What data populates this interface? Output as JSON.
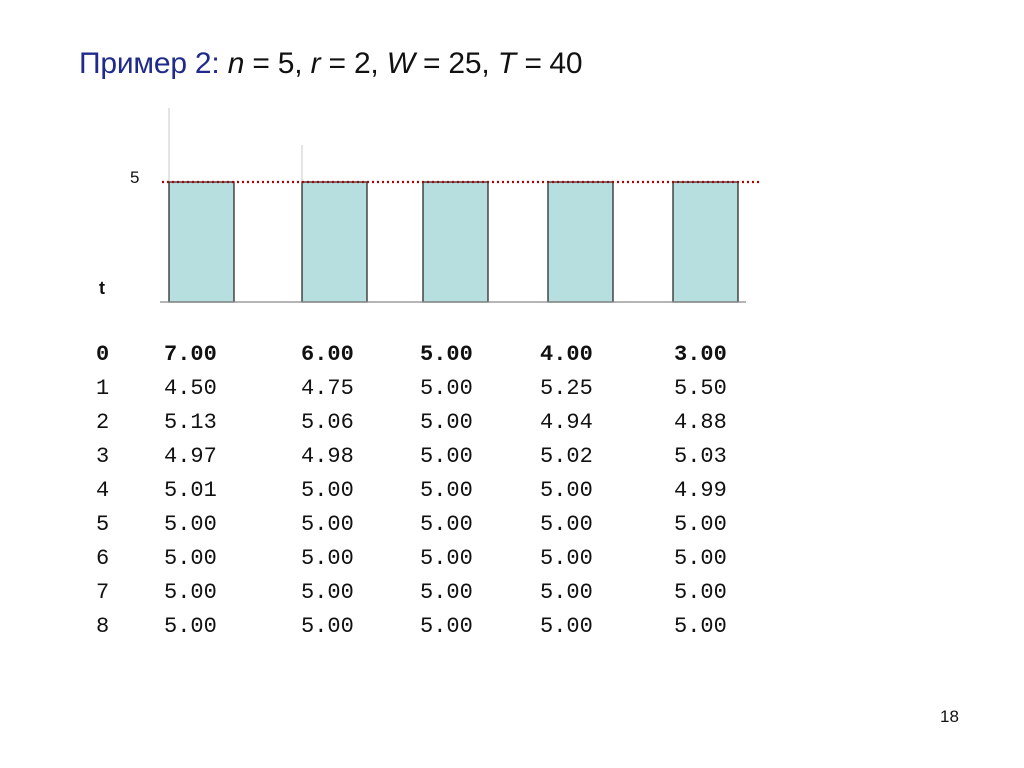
{
  "title": {
    "lead": "Пример 2",
    "colon": ":",
    "n_var": "n",
    "n_val": " = 5, ",
    "r_var": "r",
    "r_val": " = 2, ",
    "w_var": "W",
    "w_val": " = 25, ",
    "t_var": "T",
    "t_eq": " = ",
    "t_num": "40"
  },
  "chart_data": {
    "type": "bar",
    "categories": [
      "",
      "",
      "",
      "",
      ""
    ],
    "values": [
      5,
      5,
      5,
      5,
      5
    ],
    "reference_line": {
      "y": 5,
      "style": "dotted",
      "color": "#b00000"
    },
    "y_tick_label": "5",
    "x_label": "t",
    "bar_color": "#b8dfe0"
  },
  "table": {
    "rows": [
      {
        "t": "0",
        "v": [
          "7.00",
          "6.00",
          "5.00",
          "4.00",
          "3.00"
        ],
        "bold": true
      },
      {
        "t": "1",
        "v": [
          "4.50",
          "4.75",
          "5.00",
          "5.25",
          "5.50"
        ]
      },
      {
        "t": "2",
        "v": [
          "5.13",
          "5.06",
          "5.00",
          "4.94",
          "4.88"
        ]
      },
      {
        "t": "3",
        "v": [
          "4.97",
          "4.98",
          "5.00",
          "5.02",
          "5.03"
        ]
      },
      {
        "t": "4",
        "v": [
          "5.01",
          "5.00",
          "5.00",
          "5.00",
          "4.99"
        ]
      },
      {
        "t": "5",
        "v": [
          "5.00",
          "5.00",
          "5.00",
          "5.00",
          "5.00"
        ]
      },
      {
        "t": "6",
        "v": [
          "5.00",
          "5.00",
          "5.00",
          "5.00",
          "5.00"
        ]
      },
      {
        "t": "7",
        "v": [
          "5.00",
          "5.00",
          "5.00",
          "5.00",
          "5.00"
        ]
      },
      {
        "t": "8",
        "v": [
          "5.00",
          "5.00",
          "5.00",
          "5.00",
          "5.00"
        ]
      }
    ]
  },
  "page_number": "18"
}
